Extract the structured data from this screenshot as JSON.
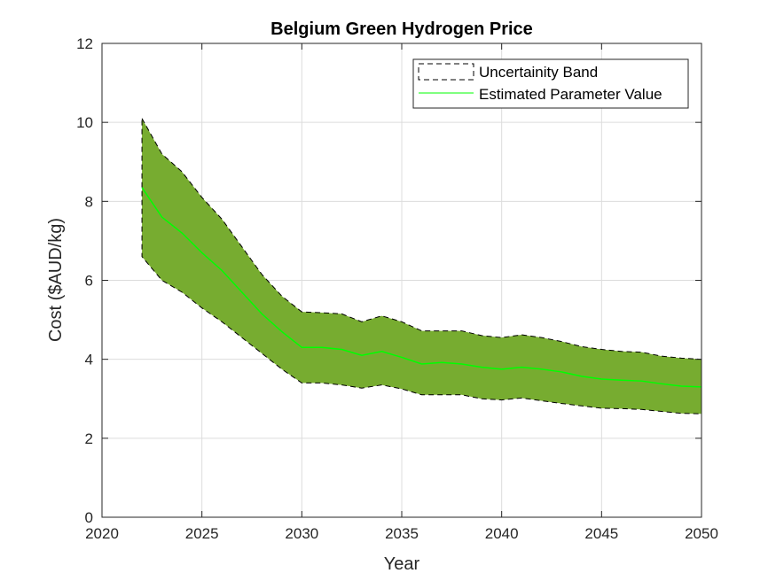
{
  "chart_data": {
    "type": "area",
    "title": "Belgium Green Hydrogen Price",
    "xlabel": "Year",
    "ylabel": "Cost ($AUD/kg)",
    "xlim": [
      2020,
      2050
    ],
    "ylim": [
      0,
      12
    ],
    "xticks": [
      2020,
      2025,
      2030,
      2035,
      2040,
      2045,
      2050
    ],
    "yticks": [
      0,
      2,
      4,
      6,
      8,
      10,
      12
    ],
    "grid": true,
    "legend_position": "top-right",
    "x": [
      2022,
      2023,
      2024,
      2025,
      2026,
      2027,
      2028,
      2029,
      2030,
      2031,
      2032,
      2033,
      2034,
      2035,
      2036,
      2037,
      2038,
      2039,
      2040,
      2041,
      2042,
      2043,
      2044,
      2045,
      2046,
      2047,
      2048,
      2049,
      2050
    ],
    "series": [
      {
        "name": "Uncertainity Band",
        "kind": "band",
        "upper": [
          10.1,
          9.2,
          8.75,
          8.1,
          7.55,
          6.85,
          6.15,
          5.6,
          5.2,
          5.18,
          5.15,
          4.95,
          5.1,
          4.95,
          4.72,
          4.72,
          4.72,
          4.6,
          4.55,
          4.62,
          4.55,
          4.45,
          4.32,
          4.25,
          4.2,
          4.18,
          4.08,
          4.03,
          4.0
        ],
        "lower": [
          6.6,
          6.0,
          5.7,
          5.3,
          4.95,
          4.55,
          4.15,
          3.75,
          3.4,
          3.4,
          3.35,
          3.27,
          3.35,
          3.25,
          3.1,
          3.1,
          3.1,
          3.0,
          2.97,
          3.02,
          2.95,
          2.88,
          2.82,
          2.76,
          2.75,
          2.73,
          2.68,
          2.63,
          2.62
        ],
        "color": "#77ac30"
      },
      {
        "name": "Estimated Parameter Value",
        "kind": "line",
        "values": [
          8.35,
          7.6,
          7.2,
          6.7,
          6.25,
          5.7,
          5.15,
          4.7,
          4.3,
          4.3,
          4.25,
          4.1,
          4.2,
          4.05,
          3.88,
          3.92,
          3.88,
          3.8,
          3.75,
          3.8,
          3.75,
          3.68,
          3.57,
          3.5,
          3.47,
          3.45,
          3.38,
          3.32,
          3.3
        ],
        "color": "#00ff00"
      }
    ]
  }
}
